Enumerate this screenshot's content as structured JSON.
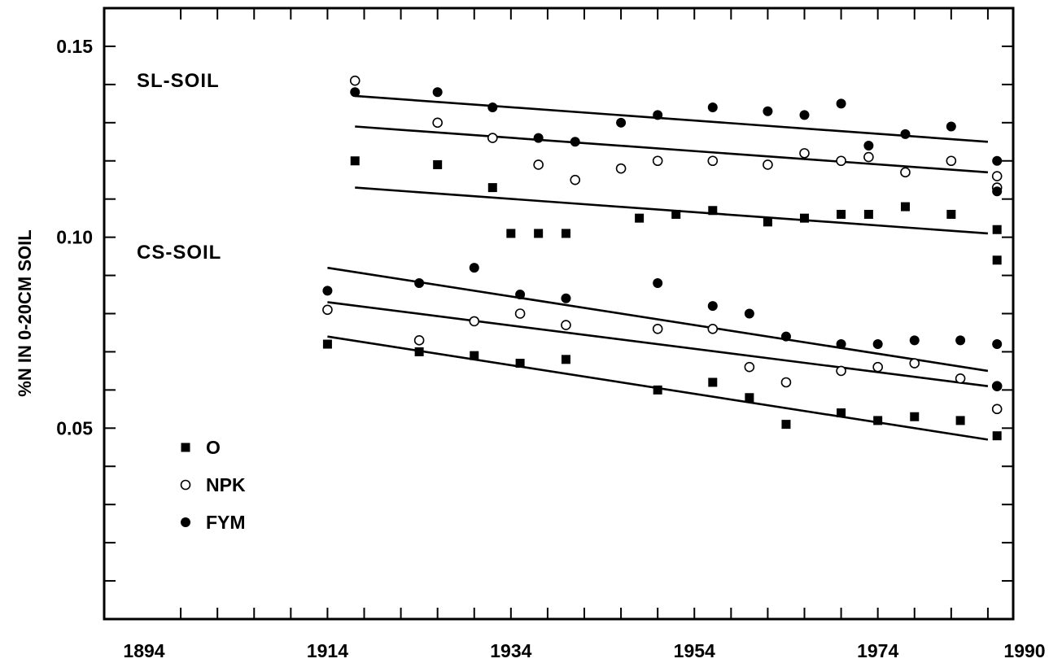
{
  "chart_data": {
    "type": "scatter",
    "title": "",
    "xlabel": "",
    "ylabel": "%N IN 0-20CM SOIL",
    "xlim": [
      1894,
      1990
    ],
    "ylim": [
      0.0,
      0.16
    ],
    "x_ticks": [
      1894,
      1914,
      1934,
      1954,
      1974,
      1990
    ],
    "x_minor_step": 4,
    "y_ticks": [
      0.05,
      0.1,
      0.15
    ],
    "y_minor_step": 0.01,
    "grid": false,
    "legend_position": "lower-left",
    "groups": [
      {
        "label": "SL-SOIL",
        "series": [
          {
            "name": "O",
            "marker": "square-filled",
            "x": [
              1917,
              1926,
              1932,
              1934,
              1937,
              1940,
              1948,
              1952,
              1956,
              1962,
              1966,
              1970,
              1973,
              1977,
              1982,
              1987
            ],
            "y": [
              0.12,
              0.119,
              0.113,
              0.101,
              0.101,
              0.101,
              0.105,
              0.106,
              0.107,
              0.104,
              0.105,
              0.106,
              0.106,
              0.108,
              0.106,
              0.102
            ],
            "trend": {
              "x": [
                1917,
                1986
              ],
              "y": [
                0.113,
                0.101
              ]
            }
          },
          {
            "name": "NPK",
            "marker": "circle-open",
            "x": [
              1917,
              1926,
              1932,
              1937,
              1941,
              1946,
              1950,
              1956,
              1962,
              1966,
              1970,
              1973,
              1977,
              1982,
              1987
            ],
            "y": [
              0.141,
              0.13,
              0.126,
              0.119,
              0.115,
              0.118,
              0.12,
              0.12,
              0.119,
              0.122,
              0.12,
              0.121,
              0.117,
              0.12,
              0.116
            ],
            "trend": {
              "x": [
                1917,
                1986
              ],
              "y": [
                0.129,
                0.117
              ]
            }
          },
          {
            "name": "FYM",
            "marker": "circle-filled",
            "x": [
              1917,
              1926,
              1932,
              1937,
              1941,
              1946,
              1950,
              1956,
              1962,
              1966,
              1970,
              1973,
              1977,
              1982,
              1987
            ],
            "y": [
              0.138,
              0.138,
              0.134,
              0.126,
              0.125,
              0.13,
              0.132,
              0.134,
              0.133,
              0.132,
              0.135,
              0.124,
              0.127,
              0.129,
              0.12
            ],
            "trend": {
              "x": [
                1917,
                1986
              ],
              "y": [
                0.137,
                0.125
              ]
            }
          }
        ]
      },
      {
        "label": "CS-SOIL",
        "series": [
          {
            "name": "O",
            "marker": "square-filled",
            "x": [
              1914,
              1924,
              1930,
              1935,
              1940,
              1950,
              1956,
              1960,
              1964,
              1970,
              1974,
              1978,
              1983,
              1987
            ],
            "y": [
              0.072,
              0.07,
              0.069,
              0.067,
              0.068,
              0.06,
              0.062,
              0.058,
              0.051,
              0.054,
              0.052,
              0.053,
              0.052,
              0.048
            ],
            "trend": {
              "x": [
                1914,
                1986
              ],
              "y": [
                0.074,
                0.047
              ]
            }
          },
          {
            "name": "NPK",
            "marker": "circle-open",
            "x": [
              1914,
              1924,
              1930,
              1935,
              1940,
              1950,
              1956,
              1960,
              1964,
              1970,
              1974,
              1978,
              1983,
              1987
            ],
            "y": [
              0.081,
              0.073,
              0.078,
              0.08,
              0.077,
              0.076,
              0.076,
              0.066,
              0.062,
              0.065,
              0.066,
              0.067,
              0.063,
              0.061
            ],
            "trend": {
              "x": [
                1914,
                1986
              ],
              "y": [
                0.083,
                0.061
              ]
            }
          },
          {
            "name": "FYM",
            "marker": "circle-filled",
            "x": [
              1914,
              1924,
              1930,
              1935,
              1940,
              1950,
              1956,
              1960,
              1964,
              1970,
              1974,
              1978,
              1983,
              1987
            ],
            "y": [
              0.086,
              0.088,
              0.092,
              0.085,
              0.084,
              0.088,
              0.082,
              0.08,
              0.074,
              0.072,
              0.072,
              0.073,
              0.073,
              0.072
            ],
            "trend": {
              "x": [
                1914,
                1986
              ],
              "y": [
                0.092,
                0.065
              ]
            }
          }
        ]
      }
    ],
    "extra_points": [
      {
        "marker": "circle-open",
        "x": 1987,
        "y": 0.113
      },
      {
        "marker": "circle-filled",
        "x": 1987,
        "y": 0.112
      },
      {
        "marker": "square-filled",
        "x": 1987,
        "y": 0.094
      },
      {
        "marker": "circle-open",
        "x": 1987,
        "y": 0.055
      },
      {
        "marker": "circle-filled",
        "x": 1987,
        "y": 0.061
      }
    ],
    "legend": [
      {
        "name": "O",
        "marker": "square-filled"
      },
      {
        "name": "NPK",
        "marker": "circle-open"
      },
      {
        "name": "FYM",
        "marker": "circle-filled"
      }
    ],
    "colors": {
      "ink": "#000000",
      "background": "#ffffff"
    }
  }
}
